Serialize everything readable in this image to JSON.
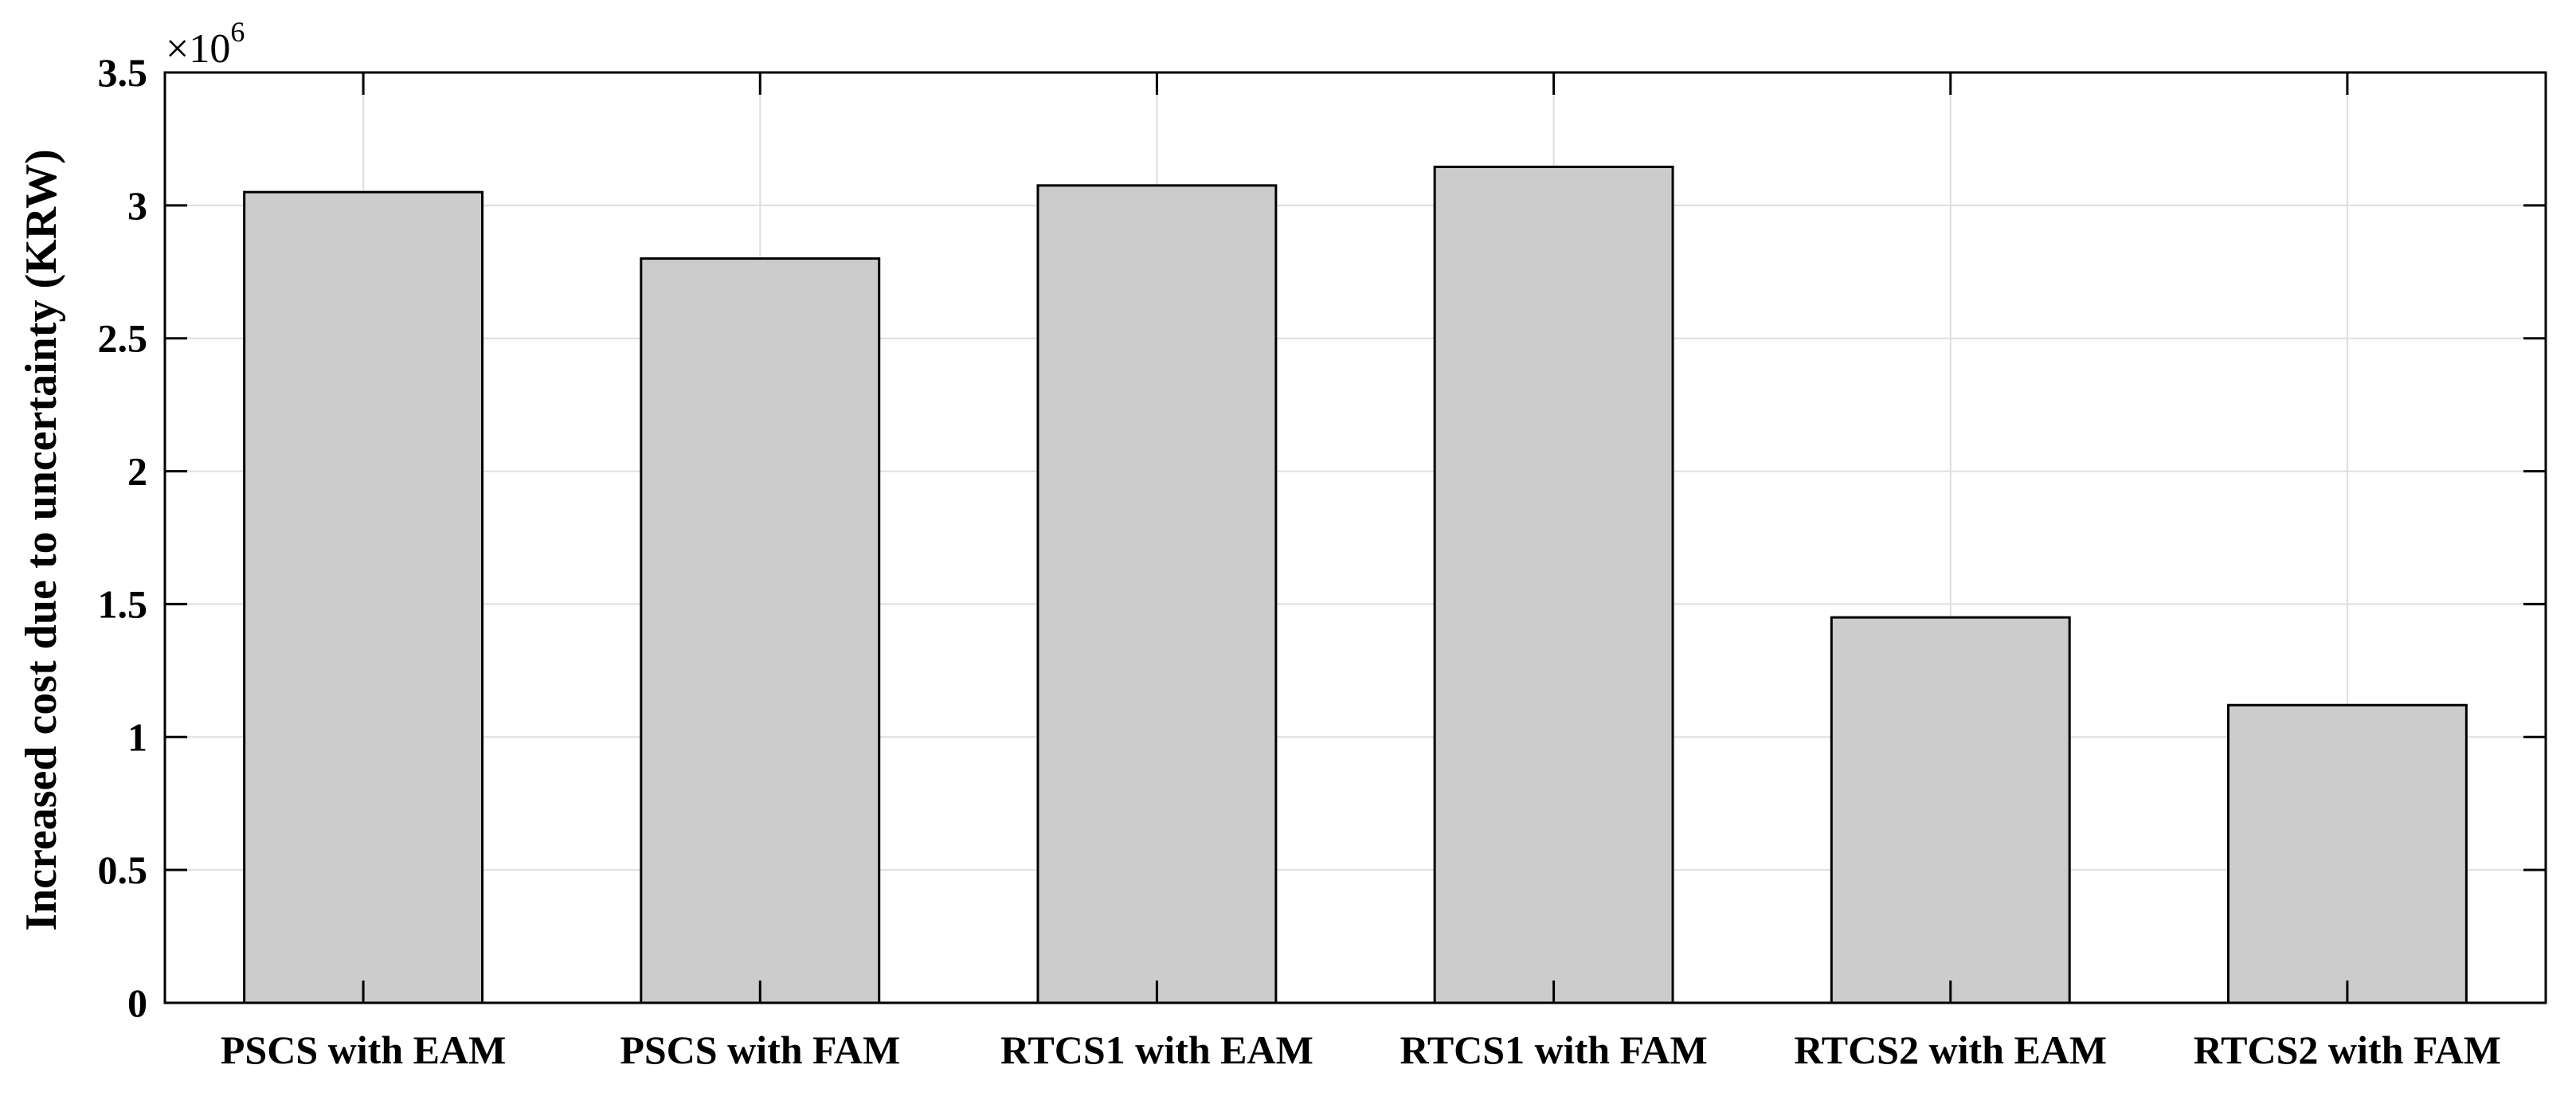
{
  "chart_data": {
    "type": "bar",
    "categories": [
      "PSCS with EAM",
      "PSCS with FAM",
      "RTCS1 with EAM",
      "RTCS1 with FAM",
      "RTCS2 with EAM",
      "RTCS2 with FAM"
    ],
    "values": [
      3050000,
      2800000,
      3075000,
      3145000,
      1450000,
      1120000
    ],
    "title": "",
    "xlabel": "",
    "ylabel": "Increased cost due to uncertainty (KRW)",
    "ylim": [
      0,
      3500000
    ],
    "yticks": [
      0,
      0.5,
      1,
      1.5,
      2,
      2.5,
      3,
      3.5
    ],
    "ytick_labels": [
      "0",
      "0.5",
      "1",
      "1.5",
      "2",
      "2.5",
      "3",
      "3.5"
    ],
    "y_multiplier_base": "×10",
    "y_multiplier_exponent": "6",
    "grid": true,
    "legend": "none",
    "bar_color": "#cccccc",
    "bar_edge_color": "#000000",
    "grid_color": "#dedede"
  }
}
